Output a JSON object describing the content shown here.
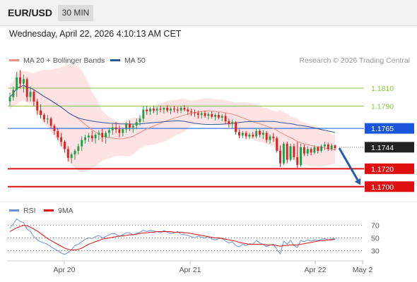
{
  "header": {
    "symbol": "EUR/USD",
    "timeframe": "30 MIN",
    "datetime": "Wednesday, April 22, 2026 4:10:13 AM CET"
  },
  "legend": {
    "ma20_label": "MA 20 + Bollinger Bands",
    "ma50_label": "MA 50",
    "credit": "Research © 2026 Trading Central",
    "colors": {
      "ma20": "#f28b82",
      "ma50": "#2c5697",
      "band_fill": "#fde3e3"
    }
  },
  "rsi_legend": {
    "rsi_label": "RSI",
    "ma_label": "9MA",
    "colors": {
      "rsi": "#6b8fd6",
      "ma": "#e01010"
    }
  },
  "chart_data": [
    {
      "type": "candlestick",
      "ylim": [
        1.1688,
        1.1832
      ],
      "x_ticks": [
        "Apr 20",
        "Apr 21",
        "Apr 22",
        "May 2"
      ],
      "levels": [
        {
          "label": "1.1810",
          "value": 1.181,
          "kind": "resistance",
          "color": "#8bbf4a"
        },
        {
          "label": "1.1790",
          "value": 1.179,
          "kind": "resistance",
          "color": "#8bbf4a"
        },
        {
          "label": "1.1765",
          "value": 1.1765,
          "kind": "pivot",
          "color": "#1a56db"
        },
        {
          "label": "1.1744",
          "value": 1.1744,
          "kind": "last-price",
          "color": "#222222"
        },
        {
          "label": "1.1720",
          "value": 1.172,
          "kind": "support",
          "color": "#e01010"
        },
        {
          "label": "1.1700",
          "value": 1.17,
          "kind": "support",
          "color": "#e01010"
        }
      ],
      "forecast_arrow": {
        "from": 1.1743,
        "to": 1.1702,
        "color": "#2a5aa3"
      },
      "series_colors": {
        "up": "#1e9e4a",
        "down": "#e02020"
      },
      "ohlc": [
        [
          1.1795,
          1.1805,
          1.179,
          1.18
        ],
        [
          1.18,
          1.1812,
          1.1796,
          1.1808
        ],
        [
          1.1808,
          1.1828,
          1.18,
          1.1822
        ],
        [
          1.1822,
          1.183,
          1.181,
          1.1815
        ],
        [
          1.1815,
          1.1825,
          1.1805,
          1.182
        ],
        [
          1.182,
          1.1822,
          1.1795,
          1.18
        ],
        [
          1.18,
          1.1812,
          1.1795,
          1.1806
        ],
        [
          1.1806,
          1.1808,
          1.179,
          1.1795
        ],
        [
          1.1795,
          1.1798,
          1.178,
          1.1785
        ],
        [
          1.1785,
          1.1792,
          1.1776,
          1.178
        ],
        [
          1.178,
          1.1782,
          1.1772,
          1.1775
        ],
        [
          1.1775,
          1.178,
          1.177,
          1.1776
        ],
        [
          1.1776,
          1.1778,
          1.1765,
          1.1768
        ],
        [
          1.1768,
          1.177,
          1.1758,
          1.1762
        ],
        [
          1.1762,
          1.1765,
          1.1752,
          1.1755
        ],
        [
          1.1755,
          1.176,
          1.1745,
          1.175
        ],
        [
          1.175,
          1.1752,
          1.1738,
          1.1742
        ],
        [
          1.1742,
          1.1745,
          1.1728,
          1.1732
        ],
        [
          1.1732,
          1.1738,
          1.1726,
          1.1736
        ],
        [
          1.1736,
          1.1742,
          1.173,
          1.174
        ],
        [
          1.174,
          1.1748,
          1.1736,
          1.1745
        ],
        [
          1.1745,
          1.1756,
          1.174,
          1.1752
        ],
        [
          1.1752,
          1.1758,
          1.1748,
          1.1755
        ],
        [
          1.1755,
          1.176,
          1.175,
          1.1757
        ],
        [
          1.1757,
          1.1762,
          1.175,
          1.1754
        ],
        [
          1.1754,
          1.176,
          1.1748,
          1.1758
        ],
        [
          1.1758,
          1.1763,
          1.1752,
          1.176
        ],
        [
          1.176,
          1.1765,
          1.175,
          1.1755
        ],
        [
          1.1755,
          1.1762,
          1.1748,
          1.176
        ],
        [
          1.176,
          1.1766,
          1.1755,
          1.1763
        ],
        [
          1.1763,
          1.177,
          1.1758,
          1.1766
        ],
        [
          1.1766,
          1.1772,
          1.176,
          1.1764
        ],
        [
          1.1764,
          1.1768,
          1.1755,
          1.176
        ],
        [
          1.176,
          1.1766,
          1.1756,
          1.1764
        ],
        [
          1.1764,
          1.1772,
          1.176,
          1.177
        ],
        [
          1.177,
          1.1774,
          1.1762,
          1.1766
        ],
        [
          1.1766,
          1.177,
          1.176,
          1.1768
        ],
        [
          1.1768,
          1.1776,
          1.1764,
          1.1772
        ],
        [
          1.1772,
          1.178,
          1.1768,
          1.1776
        ],
        [
          1.1776,
          1.179,
          1.1772,
          1.1786
        ],
        [
          1.1786,
          1.179,
          1.178,
          1.1784
        ],
        [
          1.1784,
          1.1789,
          1.178,
          1.1787
        ],
        [
          1.1787,
          1.179,
          1.1782,
          1.1785
        ],
        [
          1.1785,
          1.1789,
          1.178,
          1.1787
        ],
        [
          1.1787,
          1.179,
          1.1783,
          1.1786
        ],
        [
          1.1786,
          1.1789,
          1.1782,
          1.1788
        ],
        [
          1.1788,
          1.1791,
          1.1783,
          1.1785
        ],
        [
          1.1785,
          1.1789,
          1.1781,
          1.1787
        ],
        [
          1.1787,
          1.179,
          1.1783,
          1.1786
        ],
        [
          1.1786,
          1.1789,
          1.1782,
          1.1785
        ],
        [
          1.1785,
          1.179,
          1.1782,
          1.1788
        ],
        [
          1.1788,
          1.1791,
          1.1784,
          1.1786
        ],
        [
          1.1786,
          1.1789,
          1.178,
          1.1784
        ],
        [
          1.1784,
          1.1787,
          1.1779,
          1.1783
        ],
        [
          1.1783,
          1.1786,
          1.1778,
          1.1782
        ],
        [
          1.1782,
          1.1785,
          1.1776,
          1.178
        ],
        [
          1.178,
          1.1784,
          1.1776,
          1.1782
        ],
        [
          1.1782,
          1.1785,
          1.1777,
          1.1779
        ],
        [
          1.1779,
          1.1783,
          1.1775,
          1.1781
        ],
        [
          1.1781,
          1.1784,
          1.1776,
          1.1778
        ],
        [
          1.1778,
          1.1782,
          1.1774,
          1.178
        ],
        [
          1.178,
          1.1783,
          1.1775,
          1.1777
        ],
        [
          1.1777,
          1.1781,
          1.1773,
          1.1779
        ],
        [
          1.1779,
          1.1782,
          1.177,
          1.1773
        ],
        [
          1.1773,
          1.1776,
          1.1766,
          1.177
        ],
        [
          1.177,
          1.1775,
          1.1765,
          1.1772
        ],
        [
          1.1772,
          1.1773,
          1.1758,
          1.1761
        ],
        [
          1.1761,
          1.1764,
          1.1754,
          1.1757
        ],
        [
          1.1757,
          1.1762,
          1.1754,
          1.176
        ],
        [
          1.176,
          1.1762,
          1.1753,
          1.1756
        ],
        [
          1.1756,
          1.176,
          1.1753,
          1.1758
        ],
        [
          1.1758,
          1.1761,
          1.1754,
          1.1756
        ],
        [
          1.1756,
          1.1765,
          1.1754,
          1.1762
        ],
        [
          1.1762,
          1.1764,
          1.1755,
          1.1758
        ],
        [
          1.1758,
          1.1763,
          1.1753,
          1.176
        ],
        [
          1.176,
          1.1762,
          1.1749,
          1.1752
        ],
        [
          1.1752,
          1.1758,
          1.1748,
          1.1756
        ],
        [
          1.1756,
          1.176,
          1.175,
          1.1754
        ],
        [
          1.1754,
          1.1756,
          1.1738,
          1.174
        ],
        [
          1.174,
          1.1746,
          1.1722,
          1.1726
        ],
        [
          1.1726,
          1.175,
          1.1724,
          1.1748
        ],
        [
          1.1748,
          1.175,
          1.1726,
          1.173
        ],
        [
          1.173,
          1.1748,
          1.1728,
          1.1745
        ],
        [
          1.1745,
          1.1748,
          1.173,
          1.1733
        ],
        [
          1.1733,
          1.175,
          1.172,
          1.1724
        ],
        [
          1.1724,
          1.1748,
          1.1722,
          1.1744
        ],
        [
          1.1744,
          1.1747,
          1.1734,
          1.1737
        ],
        [
          1.1737,
          1.1745,
          1.1734,
          1.1742
        ],
        [
          1.1742,
          1.1744,
          1.1735,
          1.1738
        ],
        [
          1.1738,
          1.1746,
          1.1736,
          1.1744
        ],
        [
          1.1744,
          1.1745,
          1.1737,
          1.174
        ],
        [
          1.174,
          1.1747,
          1.1738,
          1.1745
        ],
        [
          1.1745,
          1.175,
          1.1741,
          1.1747
        ],
        [
          1.1747,
          1.1749,
          1.174,
          1.1742
        ],
        [
          1.1742,
          1.1748,
          1.174,
          1.1746
        ],
        [
          1.1746,
          1.1747,
          1.174,
          1.1743
        ]
      ]
    },
    {
      "type": "line",
      "title": "RSI",
      "y_ticks": [
        30,
        50,
        70
      ],
      "ylim": [
        15,
        85
      ],
      "series": [
        {
          "name": "RSI",
          "color": "#6b8fd6",
          "values": [
            65,
            72,
            80,
            76,
            74,
            64,
            60,
            52,
            47,
            44,
            42,
            40,
            36,
            33,
            30,
            26,
            24,
            27,
            32,
            38,
            40,
            44,
            48,
            50,
            49,
            52,
            54,
            50,
            52,
            55,
            57,
            56,
            52,
            55,
            58,
            58,
            55,
            57,
            59,
            62,
            60,
            62,
            61,
            60,
            58,
            62,
            59,
            57,
            58,
            60,
            56,
            55,
            54,
            52,
            50,
            53,
            51,
            50,
            52,
            48,
            47,
            49,
            50,
            45,
            42,
            44,
            38,
            36,
            40,
            38,
            41,
            40,
            46,
            42,
            40,
            36,
            39,
            40,
            32,
            25,
            45,
            40,
            46,
            38,
            35,
            46,
            44,
            47,
            45,
            47,
            46,
            48,
            49,
            47,
            48,
            49
          ]
        },
        {
          "name": "9MA",
          "color": "#e01010",
          "values": [
            60,
            63,
            66,
            68,
            70,
            69,
            67,
            64,
            61,
            57,
            53,
            49,
            46,
            43,
            40,
            37,
            34,
            32,
            31,
            31,
            32,
            34,
            37,
            40,
            42,
            44,
            46,
            48,
            49,
            50,
            51,
            52,
            53,
            53,
            54,
            55,
            55,
            56,
            57,
            58,
            58,
            59,
            59,
            60,
            60,
            60,
            60,
            60,
            59,
            59,
            59,
            58,
            58,
            57,
            56,
            55,
            54,
            53,
            52,
            51,
            50,
            50,
            49,
            48,
            47,
            46,
            45,
            43,
            42,
            41,
            40,
            40,
            40,
            40,
            40,
            39,
            39,
            39,
            38,
            37,
            38,
            38,
            39,
            39,
            39,
            40,
            41,
            42,
            43,
            44,
            45,
            46,
            46,
            47,
            47,
            48
          ]
        }
      ]
    }
  ]
}
